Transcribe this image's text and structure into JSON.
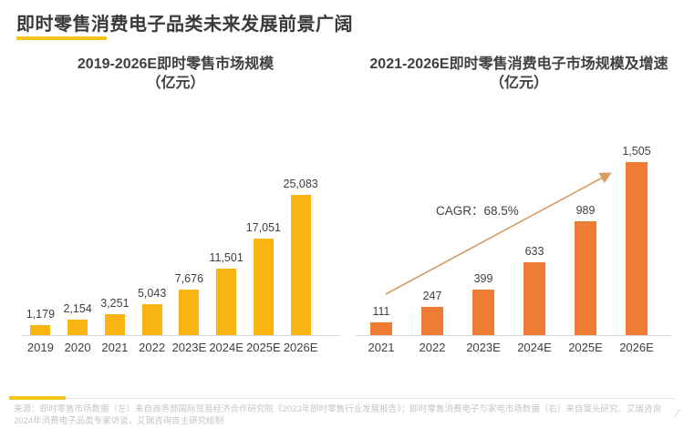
{
  "page": {
    "title": "即时零售消费电子品类未来发展前景广阔",
    "source_line1": "来源：即时零售市场数据（左）来自商务部国际贸易经济合作研究院《2023年即时零售行业发展报告》；即时零售消费电子与家电市场数据（右）来自案头研究、艾瑞咨询",
    "source_line2": "2024年消费电子品类专家访谈，艾瑞咨询自主研究绘制"
  },
  "colors": {
    "title_text": "#3a3a3a",
    "chart_text": "#3f3f3f",
    "accent_yellow": "#f2c51d",
    "bar_gold": "#f9b412",
    "bar_orange": "#ec7d33",
    "arrow_orange": "#d89b63",
    "axis_gray": "#d9d9d9",
    "divider_gray": "#e3e3e3",
    "source_text": "#c5c5c5"
  },
  "chart_data": [
    {
      "type": "bar",
      "title": "2019-2026E即时零售市场规模",
      "subtitle": "（亿元）",
      "categories": [
        "2019",
        "2020",
        "2021",
        "2022",
        "2023E",
        "2024E",
        "2025E",
        "2026E"
      ],
      "values": [
        1179,
        2154,
        3251,
        5043,
        7676,
        11501,
        17051,
        25083
      ],
      "labels": [
        "1,179",
        "2,154",
        "3,251",
        "5,043",
        "7,676",
        "11,501",
        "17,051",
        "25,083"
      ],
      "bar_color": "#f9b412",
      "ylim": [
        0,
        25083
      ],
      "grid": false,
      "legend": "none",
      "value_labels": true
    },
    {
      "type": "bar",
      "title": "2021-2026E即时零售消费电子市场规模及增速",
      "subtitle": "（亿元）",
      "categories": [
        "2021",
        "2022",
        "2023E",
        "2024E",
        "2025E",
        "2026E"
      ],
      "values": [
        111,
        247,
        399,
        633,
        989,
        1505
      ],
      "labels": [
        "111",
        "247",
        "399",
        "633",
        "989",
        "1,505"
      ],
      "bar_color": "#ec7d33",
      "ylim": [
        0,
        1505
      ],
      "grid": false,
      "legend": "none",
      "value_labels": true,
      "annotation": {
        "type": "trend-arrow",
        "text": "CAGR：68.5%"
      }
    }
  ]
}
